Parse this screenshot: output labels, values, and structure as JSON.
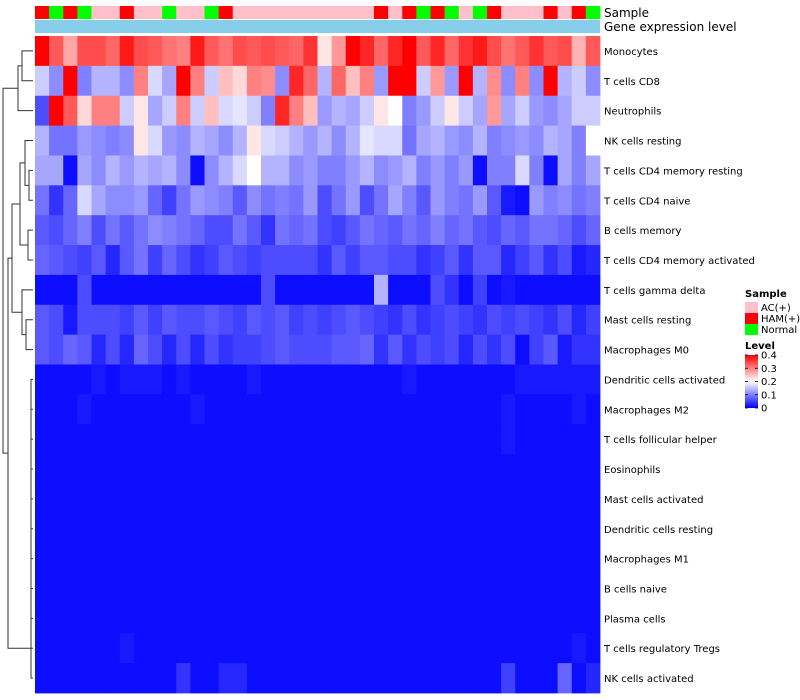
{
  "chart_data": {
    "type": "heatmap",
    "annotation_labels": {
      "sample": "Sample",
      "gene_level": "Gene expression level"
    },
    "rows": [
      "Monocytes",
      "T cells CD8",
      "Neutrophils",
      "NK cells resting",
      "T cells CD4 memory resting",
      "T cells CD4 naive",
      "B cells memory",
      "T cells CD4 memory activated",
      "T cells gamma delta",
      "Mast cells resting",
      "Macrophages M0",
      "Dendritic cells activated",
      "Macrophages M2",
      "T cells follicular helper",
      "Eosinophils",
      "Mast cells activated",
      "Dendritic cells resting",
      "Macrophages M1",
      "B cells naive",
      "Plasma cells",
      "T cells regulatory  Tregs",
      "NK cells activated"
    ],
    "sample_groups": [
      "H",
      "N",
      "H",
      "N",
      "A",
      "A",
      "H",
      "A",
      "A",
      "N",
      "A",
      "A",
      "N",
      "H",
      "A",
      "A",
      "A",
      "A",
      "A",
      "A",
      "A",
      "A",
      "A",
      "A",
      "H",
      "A",
      "H",
      "N",
      "H",
      "N",
      "A",
      "N",
      "H",
      "A",
      "A",
      "A",
      "H",
      "A",
      "H",
      "N"
    ],
    "sample_legend": {
      "title": "Sample",
      "entries": [
        {
          "key": "A",
          "label": "AC(+)"
        },
        {
          "key": "H",
          "label": "HAM(+)"
        },
        {
          "key": "N",
          "label": "Normal"
        }
      ]
    },
    "color_legend": {
      "title": "Level",
      "ticks": [
        "0.4",
        "0.3",
        "0.2",
        "0.1",
        "0"
      ],
      "min": 0,
      "max": 0.4
    },
    "values": [
      [
        0.4,
        0.33,
        0.27,
        0.34,
        0.34,
        0.32,
        0.38,
        0.34,
        0.33,
        0.31,
        0.3,
        0.38,
        0.33,
        0.31,
        0.34,
        0.33,
        0.34,
        0.33,
        0.32,
        0.36,
        0.22,
        0.28,
        0.4,
        0.37,
        0.32,
        0.37,
        0.4,
        0.33,
        0.37,
        0.32,
        0.36,
        0.38,
        0.34,
        0.31,
        0.33,
        0.36,
        0.33,
        0.34,
        0.26,
        0.33
      ],
      [
        0.16,
        0.11,
        0.4,
        0.1,
        0.14,
        0.14,
        0.11,
        0.3,
        0.17,
        0.13,
        0.4,
        0.3,
        0.16,
        0.25,
        0.23,
        0.3,
        0.29,
        0.11,
        0.37,
        0.32,
        0.14,
        0.32,
        0.25,
        0.3,
        0.12,
        0.4,
        0.4,
        0.16,
        0.28,
        0.12,
        0.4,
        0.14,
        0.29,
        0.11,
        0.3,
        0.11,
        0.4,
        0.14,
        0.16,
        0.11
      ],
      [
        0.06,
        0.4,
        0.33,
        0.23,
        0.3,
        0.3,
        0.16,
        0.22,
        0.13,
        0.16,
        0.3,
        0.16,
        0.25,
        0.17,
        0.18,
        0.16,
        0.1,
        0.37,
        0.3,
        0.25,
        0.12,
        0.14,
        0.13,
        0.16,
        0.22,
        0.2,
        0.1,
        0.12,
        0.16,
        0.22,
        0.16,
        0.13,
        0.28,
        0.13,
        0.16,
        0.12,
        0.11,
        0.13,
        0.16,
        0.16
      ],
      [
        0.14,
        0.09,
        0.09,
        0.12,
        0.11,
        0.1,
        0.11,
        0.22,
        0.17,
        0.12,
        0.11,
        0.14,
        0.13,
        0.11,
        0.14,
        0.22,
        0.17,
        0.16,
        0.14,
        0.12,
        0.14,
        0.11,
        0.14,
        0.18,
        0.17,
        0.17,
        0.09,
        0.13,
        0.14,
        0.12,
        0.11,
        0.14,
        0.1,
        0.11,
        0.12,
        0.11,
        0.14,
        0.13,
        0.1,
        0.2
      ],
      [
        0.13,
        0.13,
        0.01,
        0.13,
        0.11,
        0.14,
        0.12,
        0.14,
        0.13,
        0.14,
        0.11,
        0.01,
        0.11,
        0.14,
        0.17,
        0.2,
        0.14,
        0.14,
        0.11,
        0.12,
        0.1,
        0.1,
        0.12,
        0.14,
        0.11,
        0.12,
        0.14,
        0.1,
        0.12,
        0.1,
        0.12,
        0.01,
        0.1,
        0.1,
        0.17,
        0.1,
        0.01,
        0.13,
        0.1,
        0.13
      ],
      [
        0.09,
        0.04,
        0.08,
        0.17,
        0.13,
        0.11,
        0.11,
        0.12,
        0.08,
        0.05,
        0.09,
        0.12,
        0.11,
        0.1,
        0.07,
        0.11,
        0.09,
        0.1,
        0.09,
        0.12,
        0.06,
        0.09,
        0.12,
        0.06,
        0.09,
        0.13,
        0.1,
        0.07,
        0.12,
        0.1,
        0.09,
        0.12,
        0.07,
        0.02,
        0.01,
        0.12,
        0.1,
        0.11,
        0.09,
        0.1
      ],
      [
        0.07,
        0.06,
        0.08,
        0.1,
        0.06,
        0.09,
        0.07,
        0.09,
        0.11,
        0.1,
        0.09,
        0.08,
        0.06,
        0.06,
        0.09,
        0.07,
        0.04,
        0.09,
        0.08,
        0.09,
        0.06,
        0.05,
        0.07,
        0.09,
        0.08,
        0.07,
        0.09,
        0.08,
        0.1,
        0.08,
        0.09,
        0.07,
        0.06,
        0.08,
        0.07,
        0.09,
        0.09,
        0.08,
        0.06,
        0.08
      ],
      [
        0.08,
        0.07,
        0.06,
        0.05,
        0.07,
        0.03,
        0.07,
        0.09,
        0.05,
        0.08,
        0.06,
        0.04,
        0.05,
        0.07,
        0.06,
        0.05,
        0.06,
        0.06,
        0.06,
        0.06,
        0.04,
        0.07,
        0.05,
        0.07,
        0.07,
        0.06,
        0.06,
        0.04,
        0.05,
        0.07,
        0.04,
        0.07,
        0.07,
        0.03,
        0.05,
        0.07,
        0.04,
        0.06,
        0.02,
        0.03
      ],
      [
        0.01,
        0.01,
        0.01,
        0.06,
        0.01,
        0.01,
        0.01,
        0.01,
        0.01,
        0.01,
        0.01,
        0.01,
        0.01,
        0.01,
        0.01,
        0.01,
        0.06,
        0.01,
        0.01,
        0.01,
        0.01,
        0.01,
        0.01,
        0.01,
        0.14,
        0.01,
        0.01,
        0.01,
        0.06,
        0.04,
        0.01,
        0.05,
        0.01,
        0.02,
        0.01,
        0.01,
        0.01,
        0.01,
        0.01,
        0.01
      ],
      [
        0.07,
        0.06,
        0.02,
        0.06,
        0.06,
        0.06,
        0.05,
        0.07,
        0.05,
        0.07,
        0.06,
        0.06,
        0.07,
        0.06,
        0.05,
        0.07,
        0.06,
        0.07,
        0.05,
        0.06,
        0.05,
        0.06,
        0.07,
        0.06,
        0.05,
        0.04,
        0.06,
        0.04,
        0.05,
        0.06,
        0.05,
        0.04,
        0.06,
        0.05,
        0.06,
        0.05,
        0.04,
        0.06,
        0.03,
        0.05
      ],
      [
        0.07,
        0.06,
        0.08,
        0.07,
        0.03,
        0.06,
        0.03,
        0.08,
        0.06,
        0.03,
        0.06,
        0.03,
        0.06,
        0.04,
        0.05,
        0.05,
        0.06,
        0.07,
        0.06,
        0.06,
        0.06,
        0.07,
        0.07,
        0.08,
        0.04,
        0.07,
        0.04,
        0.06,
        0.05,
        0.06,
        0.03,
        0.06,
        0.04,
        0.06,
        0.01,
        0.05,
        0.07,
        0.02,
        0.04,
        0.04
      ],
      [
        0.01,
        0.01,
        0.01,
        0.01,
        0.02,
        0.01,
        0.02,
        0.02,
        0.02,
        0.01,
        0.02,
        0.01,
        0.01,
        0.01,
        0.01,
        0.02,
        0.01,
        0.01,
        0.01,
        0.01,
        0.01,
        0.01,
        0.01,
        0.01,
        0.01,
        0.01,
        0.02,
        0.01,
        0.01,
        0.01,
        0.01,
        0.01,
        0.01,
        0.01,
        0.02,
        0.02,
        0.02,
        0.02,
        0.02,
        0.02
      ],
      [
        0.01,
        0.01,
        0.01,
        0.02,
        0.01,
        0.01,
        0.01,
        0.01,
        0.01,
        0.01,
        0.01,
        0.02,
        0.01,
        0.01,
        0.01,
        0.01,
        0.01,
        0.01,
        0.01,
        0.01,
        0.01,
        0.01,
        0.01,
        0.01,
        0.01,
        0.01,
        0.01,
        0.01,
        0.01,
        0.01,
        0.01,
        0.01,
        0.01,
        0.02,
        0.01,
        0.01,
        0.01,
        0.01,
        0.02,
        0.01
      ],
      [
        0.01,
        0.01,
        0.01,
        0.01,
        0.01,
        0.01,
        0.01,
        0.01,
        0.01,
        0.01,
        0.01,
        0.01,
        0.01,
        0.01,
        0.01,
        0.01,
        0.01,
        0.01,
        0.01,
        0.01,
        0.01,
        0.01,
        0.01,
        0.01,
        0.01,
        0.01,
        0.01,
        0.01,
        0.01,
        0.01,
        0.01,
        0.01,
        0.01,
        0.02,
        0.01,
        0.01,
        0.01,
        0.01,
        0.01,
        0.01
      ],
      [
        0.01,
        0.01,
        0.01,
        0.01,
        0.01,
        0.01,
        0.01,
        0.01,
        0.01,
        0.01,
        0.01,
        0.01,
        0.01,
        0.01,
        0.01,
        0.01,
        0.01,
        0.01,
        0.01,
        0.01,
        0.01,
        0.01,
        0.01,
        0.01,
        0.01,
        0.01,
        0.01,
        0.01,
        0.01,
        0.01,
        0.01,
        0.01,
        0.01,
        0.01,
        0.01,
        0.01,
        0.01,
        0.01,
        0.01,
        0.01
      ],
      [
        0.01,
        0.01,
        0.01,
        0.01,
        0.01,
        0.01,
        0.01,
        0.01,
        0.01,
        0.01,
        0.01,
        0.01,
        0.01,
        0.01,
        0.01,
        0.01,
        0.01,
        0.01,
        0.01,
        0.01,
        0.01,
        0.01,
        0.01,
        0.01,
        0.01,
        0.01,
        0.01,
        0.01,
        0.01,
        0.01,
        0.01,
        0.01,
        0.01,
        0.01,
        0.01,
        0.01,
        0.01,
        0.01,
        0.01,
        0.01
      ],
      [
        0.01,
        0.01,
        0.01,
        0.01,
        0.01,
        0.01,
        0.01,
        0.01,
        0.01,
        0.01,
        0.01,
        0.01,
        0.01,
        0.01,
        0.01,
        0.01,
        0.01,
        0.01,
        0.01,
        0.01,
        0.01,
        0.01,
        0.01,
        0.01,
        0.01,
        0.01,
        0.01,
        0.01,
        0.01,
        0.01,
        0.01,
        0.01,
        0.01,
        0.01,
        0.01,
        0.01,
        0.01,
        0.01,
        0.01,
        0.01
      ],
      [
        0.01,
        0.01,
        0.01,
        0.01,
        0.01,
        0.01,
        0.01,
        0.01,
        0.01,
        0.01,
        0.01,
        0.01,
        0.01,
        0.01,
        0.01,
        0.01,
        0.01,
        0.01,
        0.01,
        0.01,
        0.01,
        0.01,
        0.01,
        0.01,
        0.01,
        0.01,
        0.01,
        0.01,
        0.01,
        0.01,
        0.01,
        0.01,
        0.01,
        0.01,
        0.01,
        0.01,
        0.01,
        0.01,
        0.01,
        0.01
      ],
      [
        0.01,
        0.01,
        0.01,
        0.01,
        0.01,
        0.01,
        0.01,
        0.01,
        0.01,
        0.01,
        0.01,
        0.01,
        0.01,
        0.01,
        0.01,
        0.01,
        0.01,
        0.01,
        0.01,
        0.01,
        0.01,
        0.01,
        0.01,
        0.01,
        0.01,
        0.01,
        0.01,
        0.01,
        0.01,
        0.01,
        0.01,
        0.01,
        0.01,
        0.01,
        0.01,
        0.01,
        0.01,
        0.01,
        0.01,
        0.01
      ],
      [
        0.01,
        0.01,
        0.01,
        0.01,
        0.01,
        0.01,
        0.01,
        0.01,
        0.01,
        0.01,
        0.01,
        0.01,
        0.01,
        0.01,
        0.01,
        0.01,
        0.01,
        0.01,
        0.01,
        0.01,
        0.01,
        0.01,
        0.01,
        0.01,
        0.01,
        0.01,
        0.01,
        0.01,
        0.01,
        0.01,
        0.01,
        0.01,
        0.01,
        0.01,
        0.01,
        0.01,
        0.01,
        0.01,
        0.01,
        0.01
      ],
      [
        0.01,
        0.01,
        0.01,
        0.01,
        0.01,
        0.01,
        0.02,
        0.01,
        0.01,
        0.01,
        0.01,
        0.01,
        0.01,
        0.01,
        0.01,
        0.01,
        0.01,
        0.01,
        0.01,
        0.01,
        0.01,
        0.01,
        0.01,
        0.01,
        0.01,
        0.01,
        0.01,
        0.01,
        0.01,
        0.01,
        0.01,
        0.01,
        0.01,
        0.01,
        0.01,
        0.01,
        0.01,
        0.01,
        0.02,
        0.01
      ],
      [
        0.01,
        0.01,
        0.01,
        0.01,
        0.01,
        0.01,
        0.01,
        0.01,
        0.01,
        0.01,
        0.04,
        0.01,
        0.01,
        0.03,
        0.03,
        0.01,
        0.01,
        0.01,
        0.01,
        0.01,
        0.01,
        0.01,
        0.01,
        0.01,
        0.01,
        0.01,
        0.01,
        0.01,
        0.01,
        0.01,
        0.01,
        0.01,
        0.01,
        0.05,
        0.01,
        0.01,
        0.01,
        0.08,
        0.01,
        0.03
      ]
    ]
  },
  "colors": {
    "low": "#0000ff",
    "mid": "#ffffff",
    "high": "#ff0000",
    "annotation_bar": "#87ceeb",
    "groups": {
      "A": "#ffc0cb",
      "H": "#ff0000",
      "N": "#00ff00"
    }
  }
}
